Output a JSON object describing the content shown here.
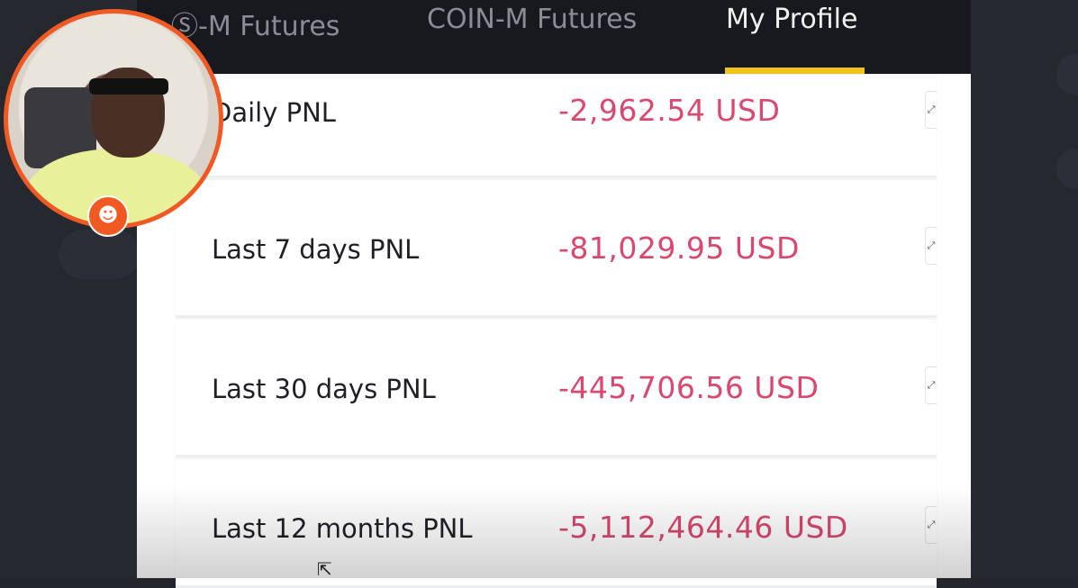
{
  "tabs": [
    {
      "label": "Ⓢ-M Futures",
      "active": false
    },
    {
      "label": "COIN-M Futures",
      "active": false
    },
    {
      "label": "My Profile",
      "active": true
    }
  ],
  "colors": {
    "accent": "#f0c419",
    "negative": "#d9486f",
    "header_bg": "#17191f",
    "webcam_border": "#f05a22"
  },
  "pnl_rows": [
    {
      "label": "Daily PNL",
      "value": "-2,962.54 USD"
    },
    {
      "label": "Last 7 days PNL",
      "value": "-81,029.95 USD"
    },
    {
      "label": "Last 30 days PNL",
      "value": "-445,706.56 USD"
    },
    {
      "label": "Last 12 months PNL",
      "value": "-5,112,464.46 USD"
    }
  ],
  "icons": {
    "expand": "expand-arrows-icon",
    "cursor": "mouse-pointer-icon",
    "badge": "streamer-badge-icon"
  }
}
